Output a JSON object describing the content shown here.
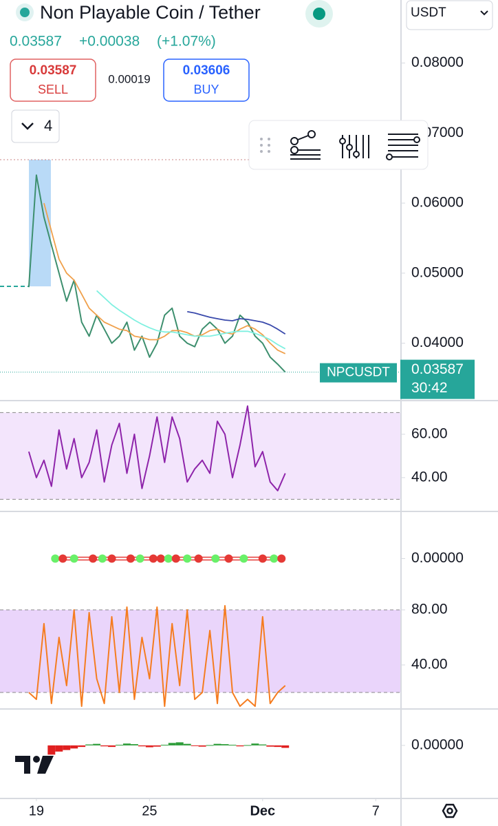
{
  "header": {
    "title": "Non Playable Coin / Tether",
    "price": 0.03587,
    "change": "+0.00038",
    "change_pct": "(+1.07%)",
    "quote_currency": "USDT"
  },
  "trade": {
    "sell_price": 0.03587,
    "sell_label": "SELL",
    "spread": 0.00019,
    "buy_price": 0.03606,
    "buy_label": "BUY",
    "layout_count": 4
  },
  "chart_data": [
    {
      "type": "line",
      "xlim": [
        -1.93,
        19.34
      ],
      "ylim": [
        0.0318,
        0.089
      ],
      "yticks": [
        {
          "value": 0.08,
          "label": "0.08000"
        },
        {
          "value": 0.07,
          "label": "0.07000"
        },
        {
          "value": 0.06,
          "label": "0.06000"
        },
        {
          "value": 0.05,
          "label": "0.05000"
        },
        {
          "value": 0.04,
          "label": "0.04000"
        }
      ],
      "x": [
        -0.4,
        0,
        0.4,
        0.8,
        1.2,
        1.6,
        2,
        2.4,
        2.8,
        3.2,
        3.6,
        4,
        4.4,
        4.8,
        5.2,
        5.6,
        6,
        6.4,
        6.8,
        7.2,
        7.6,
        8,
        8.4,
        8.8,
        9.2,
        9.6,
        10,
        10.4,
        10.8,
        11.2,
        11.6,
        12,
        12.4,
        12.8,
        13.2
      ],
      "series": [
        {
          "color": "#3d8f6e",
          "values": [
            0.048,
            0.064,
            0.058,
            0.054,
            0.05,
            0.046,
            0.049,
            0.043,
            0.041,
            0.044,
            0.042,
            0.04,
            0.041,
            0.043,
            0.039,
            0.041,
            0.038,
            0.04,
            0.044,
            0.045,
            0.041,
            0.04,
            0.0395,
            0.042,
            0.043,
            0.042,
            0.04,
            0.041,
            0.044,
            0.043,
            0.041,
            0.04,
            0.038,
            0.037,
            0.03587
          ]
        },
        {
          "color": "#f0a04b",
          "values": [
            null,
            null,
            0.06,
            0.056,
            0.052,
            0.05,
            0.049,
            0.047,
            0.045,
            0.044,
            0.043,
            0.0425,
            0.042,
            0.0418,
            0.041,
            0.0408,
            0.0405,
            0.0405,
            0.041,
            0.0418,
            0.0418,
            0.0415,
            0.041,
            0.0412,
            0.0418,
            0.042,
            0.0415,
            0.0413,
            0.042,
            0.0425,
            0.042,
            0.0412,
            0.04,
            0.039,
            0.0385
          ]
        },
        {
          "color": "#7ff0e0",
          "values": [
            null,
            null,
            null,
            null,
            null,
            null,
            null,
            null,
            null,
            0.0475,
            0.0465,
            0.0455,
            0.0447,
            0.044,
            0.0433,
            0.0427,
            0.0422,
            0.0418,
            0.0416,
            0.0416,
            0.0414,
            0.0412,
            0.041,
            0.041,
            0.041,
            0.0412,
            0.0414,
            0.0416,
            0.0417,
            0.0417,
            0.0414,
            0.041,
            0.0405,
            0.0398,
            0.0392
          ]
        },
        {
          "color": "#3949ab",
          "values": [
            null,
            null,
            null,
            null,
            null,
            null,
            null,
            null,
            null,
            null,
            null,
            null,
            null,
            null,
            null,
            null,
            null,
            null,
            null,
            null,
            null,
            0.0445,
            0.0443,
            0.044,
            0.0437,
            0.0435,
            0.0433,
            0.0432,
            0.0435,
            0.0434,
            0.0432,
            0.043,
            0.0426,
            0.042,
            0.0413
          ]
        }
      ],
      "last_price": {
        "symbol": "NPCUSDT",
        "value": 0.03587,
        "countdown": "30:42",
        "color": "#26a69a"
      }
    },
    {
      "type": "line",
      "xlim": [
        -1.93,
        19.34
      ],
      "ylim": [
        24.4,
        75.2
      ],
      "band": [
        30,
        70
      ],
      "band_color": "#f3e5fc",
      "yticks": [
        {
          "value": 60,
          "label": "60.00"
        },
        {
          "value": 40,
          "label": "40.00"
        }
      ],
      "x": [
        -0.4,
        0,
        0.4,
        0.8,
        1.2,
        1.6,
        2,
        2.4,
        2.8,
        3.2,
        3.6,
        4,
        4.4,
        4.8,
        5.2,
        5.6,
        6,
        6.4,
        6.8,
        7.2,
        7.6,
        8,
        8.4,
        8.8,
        9.2,
        9.6,
        10,
        10.4,
        10.8,
        11.2,
        11.6,
        12,
        12.4,
        12.8,
        13.2
      ],
      "series": [
        {
          "color": "#8e24aa",
          "values": [
            52,
            40,
            48,
            36,
            62,
            44,
            58,
            40,
            47,
            62,
            38,
            55,
            65,
            42,
            60,
            35,
            50,
            68,
            47,
            68,
            58,
            38,
            44,
            48,
            42,
            66,
            60,
            40,
            55,
            73,
            45,
            52,
            38,
            34,
            42
          ]
        }
      ]
    },
    {
      "type": "scatter",
      "xlim": [
        -1.93,
        19.34
      ],
      "ylim": [
        -0.0001,
        0.0001
      ],
      "yticks": [
        {
          "value": 0,
          "label": "0.00000"
        }
      ],
      "x": [
        1,
        1.4,
        2,
        3,
        3.5,
        4,
        5,
        5.5,
        6.2,
        6.6,
        7,
        7.4,
        8,
        8.6,
        9.5,
        10.2,
        11,
        12,
        12.6,
        13
      ],
      "values": [
        0,
        0,
        0,
        0,
        0,
        0,
        0,
        0,
        0,
        0,
        0,
        0,
        0,
        0,
        0,
        0,
        0,
        0,
        0,
        0
      ],
      "colors": [
        "#69f069",
        "#e53935",
        "#69f069",
        "#e53935",
        "#69f069",
        "#e53935",
        "#e53935",
        "#69f069",
        "#e53935",
        "#e53935",
        "#69f069",
        "#e53935",
        "#69f069",
        "#e53935",
        "#69f069",
        "#e53935",
        "#69f069",
        "#e53935",
        "#69f069",
        "#e53935"
      ]
    },
    {
      "type": "line",
      "xlim": [
        -1.93,
        19.34
      ],
      "ylim": [
        8,
        83
      ],
      "band": [
        20,
        80
      ],
      "band_color": "#ead5fb",
      "yticks": [
        {
          "value": 80,
          "label": "80.00"
        },
        {
          "value": 40,
          "label": "40.00"
        }
      ],
      "x": [
        -0.4,
        0,
        0.4,
        0.8,
        1.2,
        1.6,
        2,
        2.4,
        2.8,
        3.2,
        3.6,
        4,
        4.4,
        4.8,
        5.2,
        5.6,
        6,
        6.4,
        6.8,
        7.2,
        7.6,
        8,
        8.4,
        8.8,
        9.2,
        9.6,
        10,
        10.4,
        10.8,
        11.2,
        11.6,
        12,
        12.4,
        12.8,
        13.2
      ],
      "series": [
        {
          "color": "#f57c1f",
          "values": [
            20,
            15,
            70,
            12,
            60,
            25,
            80,
            10,
            78,
            30,
            12,
            75,
            20,
            82,
            15,
            60,
            30,
            82,
            10,
            70,
            25,
            80,
            15,
            20,
            65,
            12,
            83,
            20,
            10,
            15,
            10,
            75,
            12,
            20,
            25
          ]
        }
      ]
    },
    {
      "type": "bar",
      "xlim": [
        -1.93,
        19.34
      ],
      "ylim": [
        -0.00172,
        0.00118
      ],
      "up_color": "#2e9d3a",
      "down_color": "#e02020",
      "yticks": [
        {
          "value": 0,
          "label": "0.00000"
        }
      ],
      "xticks": [
        {
          "value": 0,
          "label": "19"
        },
        {
          "value": 6,
          "label": "25"
        },
        {
          "value": 12,
          "label": "Dec"
        },
        {
          "value": 18,
          "label": "7"
        }
      ],
      "x": [
        0.8,
        1.2,
        1.6,
        2,
        2.4,
        2.8,
        3.2,
        3.6,
        4,
        4.4,
        4.8,
        5.2,
        5.6,
        6,
        6.4,
        6.8,
        7.2,
        7.6,
        8,
        8.4,
        8.8,
        9.2,
        9.6,
        10,
        10.4,
        10.8,
        11.2,
        11.6,
        12,
        12.4,
        12.8,
        13.2
      ],
      "values": [
        -0.0003,
        -0.0002,
        -0.00015,
        -0.0001,
        -5e-05,
        3e-05,
        5e-05,
        -3e-05,
        -5e-05,
        2e-05,
        6e-05,
        4e-05,
        -3e-05,
        -6e-05,
        -4e-05,
        2e-05,
        8e-05,
        0.0001,
        5e-05,
        -2e-05,
        -4e-05,
        1e-05,
        5e-05,
        4e-05,
        2e-05,
        -3e-05,
        1e-05,
        6e-05,
        3e-05,
        -4e-05,
        -5e-05,
        -8e-05
      ]
    }
  ]
}
